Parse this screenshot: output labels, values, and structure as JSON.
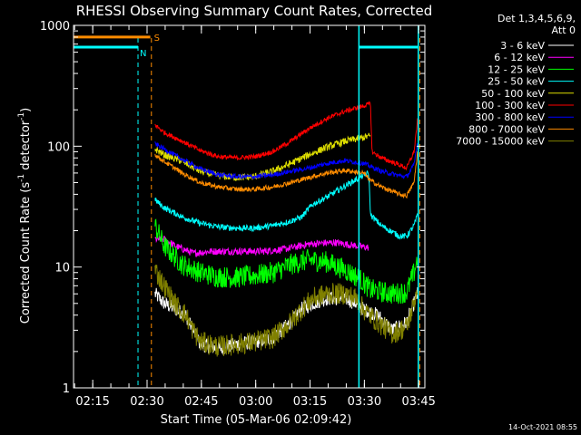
{
  "chart_data": {
    "type": "line",
    "title": "RHESSI Observing Summary Count Rates, Corrected",
    "xlabel": "Start Time (05-Mar-06 02:09:42)",
    "ylabel_main": "Corrected Count Rate (s",
    "ylabel_sup1": "-1",
    "ylabel_mid": " detector",
    "ylabel_sup2": "-1",
    "ylabel_end": ")",
    "scale": "log",
    "ylim": [
      1,
      1000
    ],
    "xlim_minutes": [
      0,
      97
    ],
    "x_ticks": [
      {
        "t": 5.3,
        "label": "02:15"
      },
      {
        "t": 20.3,
        "label": "02:30"
      },
      {
        "t": 35.3,
        "label": "02:45"
      },
      {
        "t": 50.3,
        "label": "03:00"
      },
      {
        "t": 65.3,
        "label": "03:15"
      },
      {
        "t": 80.3,
        "label": "03:30"
      },
      {
        "t": 95.3,
        "label": "03:45"
      }
    ],
    "y_ticks": [
      {
        "v": 1,
        "label": "1"
      },
      {
        "v": 10,
        "label": "10"
      },
      {
        "v": 100,
        "label": "100"
      },
      {
        "v": 1000,
        "label": "1000"
      }
    ],
    "legend_header_1": "Det 1,3,4,5,6,9,",
    "legend_header_2": "Att 0",
    "series": [
      {
        "name": "3 - 6 keV",
        "color": "#ffffff",
        "noise": 0.06,
        "start": 22.5,
        "end": 95,
        "points": [
          [
            22.5,
            6
          ],
          [
            25,
            5
          ],
          [
            28,
            4.5
          ],
          [
            31,
            4
          ],
          [
            33,
            3
          ],
          [
            35,
            2.3
          ],
          [
            40,
            2.1
          ],
          [
            45,
            2.3
          ],
          [
            50,
            2.4
          ],
          [
            55,
            2.6
          ],
          [
            60,
            3.5
          ],
          [
            63,
            4.5
          ],
          [
            66,
            5
          ],
          [
            70,
            5.5
          ],
          [
            75,
            5.5
          ],
          [
            78,
            5
          ],
          [
            80,
            4.5
          ],
          [
            84,
            4
          ],
          [
            88,
            3
          ],
          [
            92,
            3.5
          ],
          [
            94,
            5
          ],
          [
            95,
            6
          ]
        ]
      },
      {
        "name": "6 - 12 keV",
        "color": "#ff00ff",
        "noise": 0.03,
        "start": 22.5,
        "end": 81.5,
        "points": [
          [
            22.5,
            17
          ],
          [
            25,
            17
          ],
          [
            28,
            15
          ],
          [
            33,
            13
          ],
          [
            38,
            13.5
          ],
          [
            45,
            13.5
          ],
          [
            52,
            13.5
          ],
          [
            58,
            14
          ],
          [
            65,
            15.5
          ],
          [
            72,
            16
          ],
          [
            78,
            15
          ],
          [
            81.5,
            14.5
          ]
        ]
      },
      {
        "name": "12 - 25 keV",
        "color": "#00ff00",
        "noise": 0.09,
        "start": 22.5,
        "end": 95,
        "points": [
          [
            22.5,
            22
          ],
          [
            25,
            15
          ],
          [
            30,
            10.5
          ],
          [
            35,
            9
          ],
          [
            40,
            8.3
          ],
          [
            45,
            8.2
          ],
          [
            50,
            8.5
          ],
          [
            55,
            9
          ],
          [
            60,
            10.5
          ],
          [
            65,
            11.5
          ],
          [
            70,
            11
          ],
          [
            75,
            9.5
          ],
          [
            79,
            8
          ],
          [
            82,
            6.5
          ],
          [
            88,
            6
          ],
          [
            92,
            6.2
          ],
          [
            94,
            9
          ],
          [
            95,
            12
          ]
        ]
      },
      {
        "name": "25 - 50 keV",
        "color": "#00ffff",
        "noise": 0.025,
        "start": 22.5,
        "end": 95,
        "points": [
          [
            22.5,
            36
          ],
          [
            25,
            31
          ],
          [
            30,
            26
          ],
          [
            35,
            23
          ],
          [
            40,
            21.5
          ],
          [
            45,
            21
          ],
          [
            50,
            21
          ],
          [
            55,
            22
          ],
          [
            60,
            24
          ],
          [
            63,
            26
          ],
          [
            66,
            33
          ],
          [
            70,
            38
          ],
          [
            74,
            45
          ],
          [
            78,
            53
          ],
          [
            80,
            57
          ],
          [
            81.5,
            60
          ],
          [
            82,
            27
          ],
          [
            85,
            22
          ],
          [
            90,
            18
          ],
          [
            92,
            18
          ],
          [
            94,
            22
          ],
          [
            95,
            27
          ]
        ]
      },
      {
        "name": "50 - 100 keV",
        "color": "#dddd00",
        "noise": 0.03,
        "start": 22.5,
        "end": 82,
        "points": [
          [
            22.5,
            95
          ],
          [
            25,
            85
          ],
          [
            30,
            75
          ],
          [
            35,
            62
          ],
          [
            40,
            57
          ],
          [
            45,
            55
          ],
          [
            50,
            56
          ],
          [
            55,
            62
          ],
          [
            60,
            72
          ],
          [
            65,
            85
          ],
          [
            70,
            98
          ],
          [
            75,
            110
          ],
          [
            80,
            118
          ],
          [
            82,
            122
          ]
        ]
      },
      {
        "name": "100 - 300 keV",
        "color": "#ff0000",
        "noise": 0.02,
        "start": 22.5,
        "end": 95,
        "points": [
          [
            22.5,
            150
          ],
          [
            25,
            130
          ],
          [
            30,
            110
          ],
          [
            35,
            92
          ],
          [
            40,
            82
          ],
          [
            45,
            80
          ],
          [
            50,
            82
          ],
          [
            55,
            90
          ],
          [
            60,
            110
          ],
          [
            65,
            140
          ],
          [
            70,
            170
          ],
          [
            75,
            195
          ],
          [
            80,
            215
          ],
          [
            82,
            225
          ],
          [
            82.4,
            90
          ],
          [
            85,
            80
          ],
          [
            90,
            70
          ],
          [
            92,
            66
          ],
          [
            94,
            90
          ],
          [
            95,
            165
          ]
        ]
      },
      {
        "name": "300 - 800 keV",
        "color": "#0000ff",
        "noise": 0.02,
        "start": 22.5,
        "end": 95,
        "points": [
          [
            22.5,
            105
          ],
          [
            25,
            95
          ],
          [
            30,
            78
          ],
          [
            35,
            65
          ],
          [
            40,
            58
          ],
          [
            45,
            56
          ],
          [
            50,
            56
          ],
          [
            55,
            58
          ],
          [
            60,
            62
          ],
          [
            65,
            66
          ],
          [
            70,
            72
          ],
          [
            75,
            76
          ],
          [
            80,
            72
          ],
          [
            82,
            68
          ],
          [
            85,
            62
          ],
          [
            90,
            57
          ],
          [
            92,
            56
          ],
          [
            94,
            70
          ],
          [
            95,
            110
          ]
        ]
      },
      {
        "name": "800 - 7000 keV",
        "color": "#ff8c00",
        "noise": 0.02,
        "start": 22.5,
        "end": 95,
        "points": [
          [
            22.5,
            85
          ],
          [
            25,
            75
          ],
          [
            30,
            60
          ],
          [
            35,
            50
          ],
          [
            40,
            46
          ],
          [
            45,
            44
          ],
          [
            50,
            44
          ],
          [
            55,
            46
          ],
          [
            60,
            50
          ],
          [
            65,
            55
          ],
          [
            70,
            60
          ],
          [
            75,
            63
          ],
          [
            80,
            60
          ],
          [
            82,
            52
          ],
          [
            85,
            46
          ],
          [
            90,
            40
          ],
          [
            92,
            39
          ],
          [
            94,
            50
          ],
          [
            95,
            90
          ]
        ]
      },
      {
        "name": "7000 - 15000 keV",
        "color": "#808000",
        "noise": 0.09,
        "start": 22.5,
        "end": 95,
        "points": [
          [
            22.5,
            9.5
          ],
          [
            25,
            7
          ],
          [
            28,
            5
          ],
          [
            31,
            4
          ],
          [
            33,
            3
          ],
          [
            35,
            2.4
          ],
          [
            40,
            2.2
          ],
          [
            45,
            2.3
          ],
          [
            50,
            2.4
          ],
          [
            55,
            2.6
          ],
          [
            60,
            3.5
          ],
          [
            63,
            4.5
          ],
          [
            66,
            5.5
          ],
          [
            70,
            6
          ],
          [
            75,
            6
          ],
          [
            78,
            5.5
          ],
          [
            80,
            4.5
          ],
          [
            84,
            3.5
          ],
          [
            88,
            2.8
          ],
          [
            92,
            3.2
          ],
          [
            94,
            5
          ],
          [
            95,
            7
          ]
        ]
      }
    ],
    "annotations": {
      "s_label": "S",
      "n_label": "N",
      "s_color": "#ff8c00",
      "n_color": "#00ffff",
      "s_line": {
        "from": 0,
        "to": 21.2,
        "level": 800
      },
      "n_line_1": {
        "from": 0,
        "to": 17.8,
        "level": 660
      },
      "n_line_2": {
        "from": 78.8,
        "to": 95,
        "level": 660
      },
      "dashed_orange": [
        21.5,
        95.6
      ],
      "dashed_cyan": [
        17.8
      ],
      "solid_cyan": [
        78.8,
        95.2
      ]
    }
  },
  "footer": {
    "date": "14-Oct-2021 08:55"
  }
}
